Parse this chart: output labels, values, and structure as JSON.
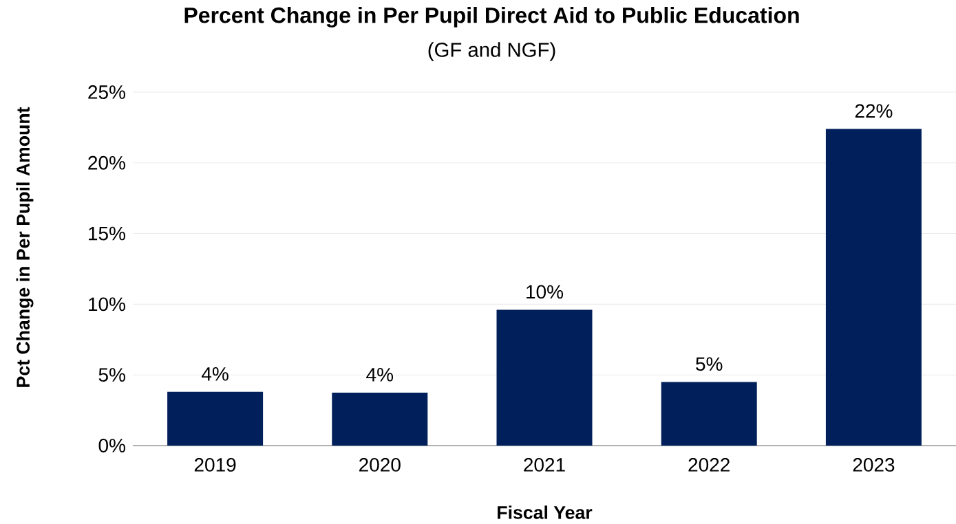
{
  "chart_data": {
    "type": "bar",
    "title": "Percent Change in Per Pupil Direct Aid to Public Education",
    "subtitle": "(GF and NGF)",
    "xlabel": "Fiscal Year",
    "ylabel": "Pct Change in Per Pupil Amount",
    "categories": [
      "2019",
      "2020",
      "2021",
      "2022",
      "2023"
    ],
    "values": [
      3.8,
      3.75,
      9.6,
      4.5,
      22.4
    ],
    "value_labels": [
      "4%",
      "4%",
      "10%",
      "5%",
      "22%"
    ],
    "color": "#001f5b",
    "ylim": [
      0,
      25
    ],
    "yticks": [
      {
        "value": 0,
        "label": "0%"
      },
      {
        "value": 5,
        "label": "5%"
      },
      {
        "value": 10,
        "label": "10%"
      },
      {
        "value": 15,
        "label": "15%"
      },
      {
        "value": 20,
        "label": "20%"
      },
      {
        "value": 25,
        "label": "25%"
      }
    ],
    "grid": "y"
  }
}
